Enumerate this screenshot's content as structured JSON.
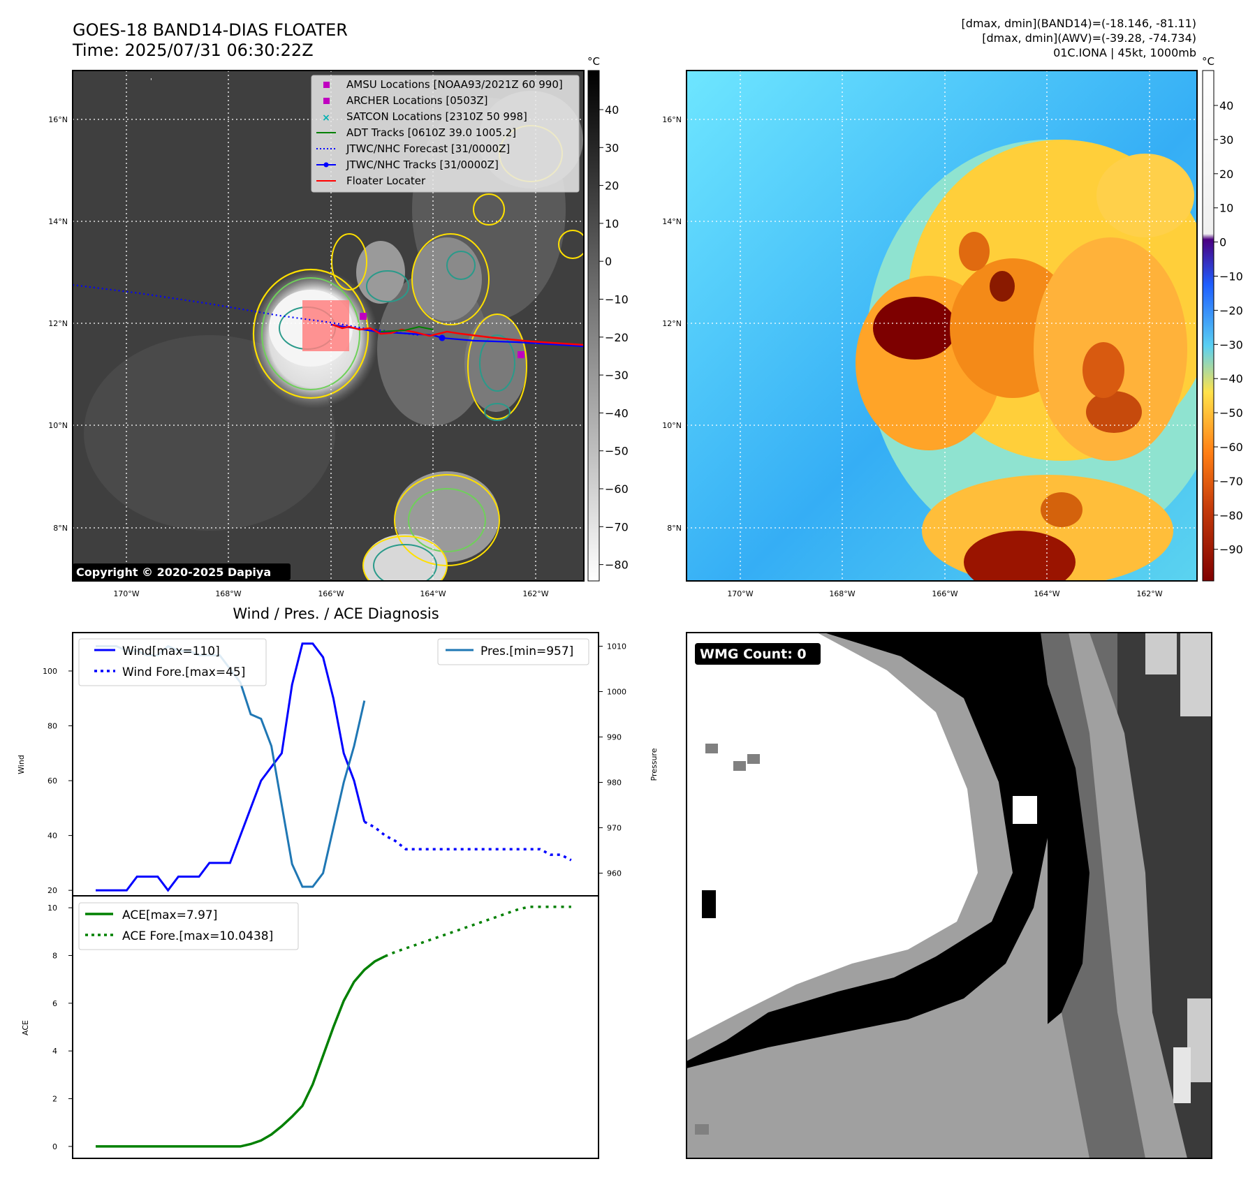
{
  "header": {
    "title": "GOES-18 BAND14-DIAS FLOATER",
    "time": "Time: 2025/07/31 06:30:22Z",
    "dmax_band14": "[dmax, dmin](BAND14)=(-18.146, -81.11)",
    "dmax_awv": "[dmax, dmin](AWV)=(-39.28, -74.734)",
    "storm": "01C.IONA | 45kt, 1000mb"
  },
  "map": {
    "lat_labels": [
      "16°N",
      "14°N",
      "12°N",
      "10°N",
      "8°N"
    ],
    "lon_labels": [
      "170°W",
      "168°W",
      "166°W",
      "164°W",
      "162°W"
    ],
    "copyright": "Copyright © 2020-2025 Dapiya",
    "colorbar_unit": "°C",
    "colors": {
      "track": "#0000ff",
      "forecast": "#0000ff",
      "floater": "#ff0000",
      "adt": "#008000",
      "marker": "#c000c0",
      "contour_yellow": "#ffe000",
      "contour_teal": "#2a9a8a"
    },
    "legend": [
      {
        "label": "AMSU Locations [NOAA93/2021Z 60 990]",
        "icon": "square-marker"
      },
      {
        "label": "ARCHER Locations [0503Z]",
        "icon": "square-marker"
      },
      {
        "label": "SATCON Locations [2310Z 50 998]",
        "icon": "x-marker"
      },
      {
        "label": "ADT Tracks [0610Z 39.0 1005.2]",
        "icon": "green-line"
      },
      {
        "label": "JTWC/NHC Forecast [31/0000Z]",
        "icon": "blue-dotted-line"
      },
      {
        "label": "JTWC/NHC Tracks [31/0000Z]",
        "icon": "blue-line-dot"
      },
      {
        "label": "Floater Locater",
        "icon": "red-line"
      }
    ],
    "ir_colorbar_ticks": [
      "40",
      "30",
      "20",
      "10",
      "0",
      "−10",
      "−20",
      "−30",
      "−40",
      "−50",
      "−60",
      "−70",
      "−80"
    ],
    "awv_colorbar_ticks": [
      "40",
      "30",
      "20",
      "10",
      "0",
      "−10",
      "−20",
      "−30",
      "−40",
      "−50",
      "−60",
      "−70",
      "−80",
      "−90"
    ]
  },
  "diagnosis_title": "Wind / Pres. / ACE Diagnosis",
  "wmg": {
    "label": "WMG Count: 0"
  },
  "chart_data": [
    {
      "type": "line",
      "ylabel": "Wind",
      "ylabel_right": "Pressure",
      "x": [
        0,
        1,
        2,
        3,
        4,
        5,
        6,
        7,
        8,
        9,
        10,
        11,
        12,
        13,
        14,
        15,
        16,
        17,
        18,
        19,
        20,
        21,
        22,
        23,
        24,
        25,
        26,
        27,
        28,
        29,
        30,
        31,
        32,
        33,
        34,
        35,
        36,
        37,
        38,
        39,
        40,
        41,
        42,
        43,
        44,
        45,
        46
      ],
      "yticks": [
        "20",
        "40",
        "60",
        "80",
        "100"
      ],
      "yticks_right": [
        "960",
        "970",
        "980",
        "990",
        "1000",
        "1010"
      ],
      "ylim": [
        18,
        114
      ],
      "ylim_right": [
        955,
        1013
      ],
      "legend": [
        "Wind[max=110]",
        "Wind Fore.[max=45]",
        "Pres.[min=957]"
      ],
      "series": [
        {
          "name": "Wind[max=110]",
          "axis": "left",
          "values": [
            20,
            20,
            20,
            20,
            25,
            25,
            25,
            20,
            25,
            25,
            25,
            30,
            30,
            30,
            40,
            50,
            60,
            65,
            70,
            95,
            110,
            110,
            105,
            90,
            70,
            60,
            45,
            null,
            null,
            null,
            null,
            null,
            null,
            null,
            null,
            null,
            null,
            null,
            null,
            null,
            null,
            null,
            null,
            null,
            null,
            null,
            null
          ]
        },
        {
          "name": "Wind Fore.[max=45]",
          "axis": "left",
          "values": [
            null,
            null,
            null,
            null,
            null,
            null,
            null,
            null,
            null,
            null,
            null,
            null,
            null,
            null,
            null,
            null,
            null,
            null,
            null,
            null,
            null,
            null,
            null,
            null,
            null,
            null,
            45,
            43,
            40,
            38,
            35,
            35,
            35,
            35,
            35,
            35,
            35,
            35,
            35,
            35,
            35,
            35,
            35,
            35,
            33,
            33,
            31
          ]
        },
        {
          "name": "Pres.[min=957]",
          "axis": "right",
          "values": [
            1010,
            1010,
            1010,
            1009,
            1009,
            1008,
            1008,
            1010,
            1009,
            1009,
            1008,
            1008,
            1008,
            1005,
            1002,
            995,
            994,
            988,
            975,
            962,
            957,
            957,
            960,
            970,
            980,
            988,
            998,
            null,
            null,
            null,
            null,
            null,
            null,
            null,
            null,
            null,
            null,
            null,
            null,
            null,
            null,
            null,
            null,
            null,
            null,
            null,
            null
          ]
        }
      ]
    },
    {
      "type": "line",
      "ylabel": "ACE",
      "x": [
        0,
        1,
        2,
        3,
        4,
        5,
        6,
        7,
        8,
        9,
        10,
        11,
        12,
        13,
        14,
        15,
        16,
        17,
        18,
        19,
        20,
        21,
        22,
        23,
        24,
        25,
        26,
        27,
        28,
        29,
        30,
        31,
        32,
        33,
        34,
        35,
        36,
        37,
        38,
        39,
        40,
        41,
        42,
        43,
        44,
        45,
        46
      ],
      "yticks": [
        "0",
        "2",
        "4",
        "6",
        "8",
        "10"
      ],
      "ylim": [
        -0.5,
        10.5
      ],
      "legend": [
        "ACE[max=7.97]",
        "ACE Fore.[max=10.0438]"
      ],
      "series": [
        {
          "name": "ACE[max=7.97]",
          "values": [
            0,
            0,
            0,
            0,
            0,
            0,
            0,
            0,
            0,
            0,
            0,
            0,
            0,
            0,
            0,
            0.1,
            0.25,
            0.5,
            0.85,
            1.25,
            1.7,
            2.6,
            3.8,
            5.0,
            6.1,
            6.9,
            7.4,
            7.75,
            7.97,
            null,
            null,
            null,
            null,
            null,
            null,
            null,
            null,
            null,
            null,
            null,
            null,
            null,
            null,
            null,
            null,
            null,
            null
          ]
        },
        {
          "name": "ACE Fore.[max=10.0438]",
          "values": [
            null,
            null,
            null,
            null,
            null,
            null,
            null,
            null,
            null,
            null,
            null,
            null,
            null,
            null,
            null,
            null,
            null,
            null,
            null,
            null,
            null,
            null,
            null,
            null,
            null,
            null,
            null,
            null,
            7.97,
            8.15,
            8.3,
            8.45,
            8.6,
            8.75,
            8.9,
            9.05,
            9.2,
            9.35,
            9.5,
            9.65,
            9.8,
            9.95,
            10.04,
            10.04,
            10.04,
            10.04,
            10.04
          ]
        }
      ]
    }
  ]
}
